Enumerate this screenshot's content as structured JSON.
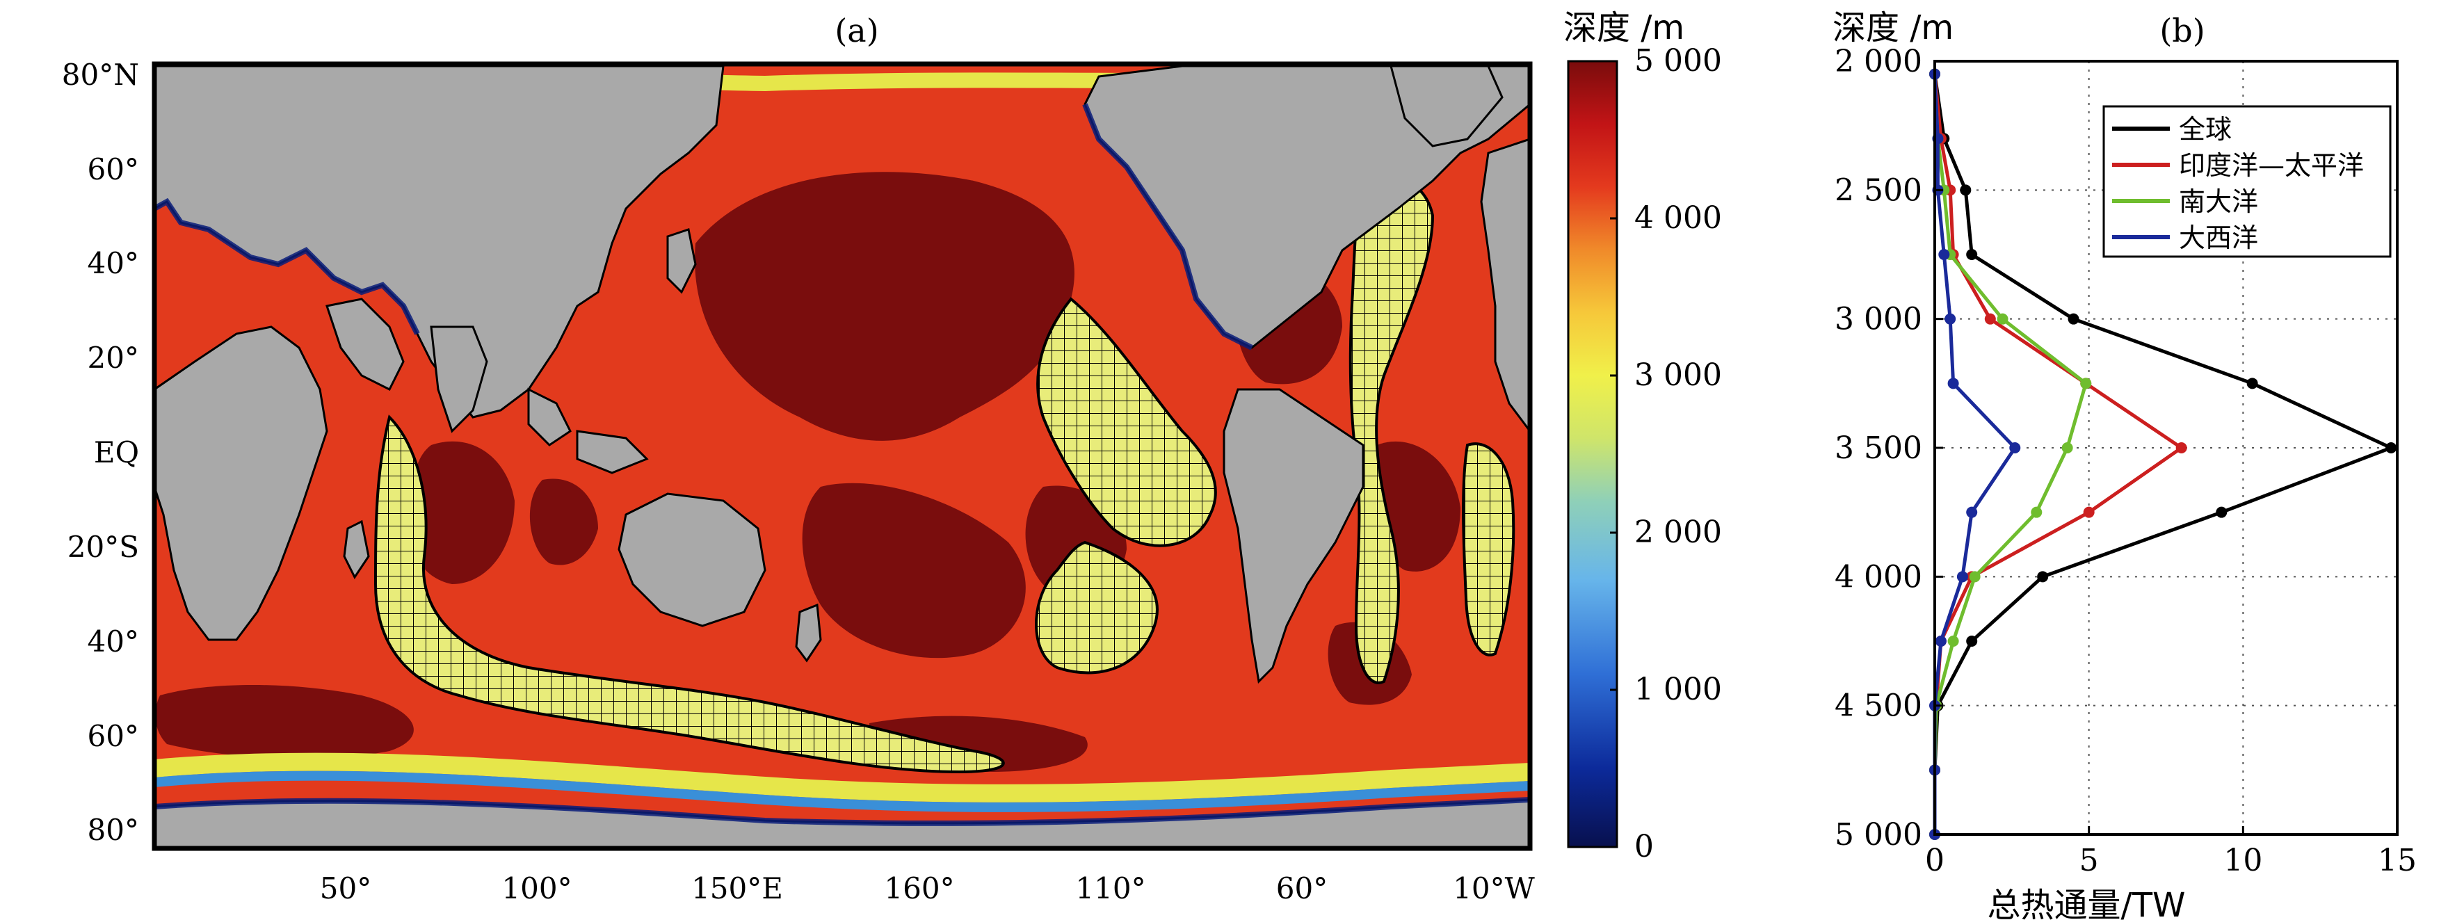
{
  "chart_data": [
    {
      "type": "heatmap",
      "panel_label": "(a)",
      "colorbar_title": "深度 /m",
      "colorbar_range": [
        0,
        5000
      ],
      "colorbar_ticks": [
        "0",
        "1 000",
        "2 000",
        "3 000",
        "4 000",
        "5 000"
      ],
      "colorbar_tick_values": [
        0,
        1000,
        2000,
        3000,
        4000,
        5000
      ],
      "y_ticks": [
        "80°N",
        "60°",
        "40°",
        "20°",
        "EQ",
        "20°S",
        "40°",
        "60°",
        "80°"
      ],
      "y_tick_values": [
        80,
        60,
        40,
        20,
        0,
        -20,
        -40,
        -60,
        -80
      ],
      "x_ticks": [
        "50°",
        "100°",
        "150°E",
        "160°",
        "110°",
        "60°",
        "10°W"
      ],
      "x_tick_values": [
        50,
        100,
        150,
        200,
        250,
        300,
        350
      ],
      "ylim": [
        -85,
        85
      ],
      "xlim": [
        0,
        360
      ],
      "colors": {
        "land": "#a9a9a9",
        "shelf": "#0a1d7a",
        "slope": "#3a8fd8",
        "mid": "#e6e64a",
        "deep": "#e23a1d",
        "abyss": "#7a0d0d",
        "hatch_fill": "#e8ec7a"
      }
    },
    {
      "type": "line",
      "panel_label": "(b)",
      "ylabel": "深度 /m",
      "xlabel": "总热通量/TW",
      "xlim": [
        0,
        15
      ],
      "ylim": [
        2000,
        5000
      ],
      "x_ticks": [
        "0",
        "5",
        "10",
        "15"
      ],
      "x_tick_values": [
        0,
        5,
        10,
        15
      ],
      "y_ticks": [
        "2 000",
        "2 500",
        "3 000",
        "3 500",
        "4 000",
        "4 500",
        "5 000"
      ],
      "y_tick_values": [
        2000,
        2500,
        3000,
        3500,
        4000,
        4500,
        5000
      ],
      "grid": true,
      "legend_position": "top-right",
      "series": [
        {
          "name": "全球",
          "color": "#000000",
          "points": [
            [
              0,
              2050
            ],
            [
              0.3,
              2300
            ],
            [
              1.0,
              2500
            ],
            [
              1.2,
              2750
            ],
            [
              4.5,
              3000
            ],
            [
              10.3,
              3250
            ],
            [
              14.8,
              3500
            ],
            [
              9.3,
              3750
            ],
            [
              3.5,
              4000
            ],
            [
              1.2,
              4250
            ],
            [
              0.1,
              4500
            ],
            [
              0,
              4750
            ],
            [
              0,
              5000
            ]
          ]
        },
        {
          "name": "印度洋—太平洋",
          "color": "#cc1f1f",
          "points": [
            [
              0,
              2050
            ],
            [
              0.2,
              2300
            ],
            [
              0.5,
              2500
            ],
            [
              0.6,
              2750
            ],
            [
              1.8,
              3000
            ],
            [
              4.9,
              3250
            ],
            [
              8.0,
              3500
            ],
            [
              5.0,
              3750
            ],
            [
              1.2,
              4000
            ],
            [
              0.2,
              4250
            ],
            [
              0.05,
              4500
            ],
            [
              0,
              4750
            ],
            [
              0,
              5000
            ]
          ]
        },
        {
          "name": "南大洋",
          "color": "#6fbd2e",
          "points": [
            [
              0,
              2050
            ],
            [
              0.1,
              2300
            ],
            [
              0.3,
              2500
            ],
            [
              0.5,
              2750
            ],
            [
              2.2,
              3000
            ],
            [
              4.9,
              3250
            ],
            [
              4.3,
              3500
            ],
            [
              3.3,
              3750
            ],
            [
              1.3,
              4000
            ],
            [
              0.6,
              4250
            ],
            [
              0.05,
              4500
            ],
            [
              0,
              4750
            ],
            [
              0,
              5000
            ]
          ]
        },
        {
          "name": "大西洋",
          "color": "#1a2a9a",
          "points": [
            [
              0,
              2050
            ],
            [
              0.1,
              2300
            ],
            [
              0.1,
              2500
            ],
            [
              0.3,
              2750
            ],
            [
              0.5,
              3000
            ],
            [
              0.6,
              3250
            ],
            [
              2.6,
              3500
            ],
            [
              1.2,
              3750
            ],
            [
              0.9,
              4000
            ],
            [
              0.2,
              4250
            ],
            [
              0.0,
              4500
            ],
            [
              0,
              4750
            ],
            [
              0,
              5000
            ]
          ]
        }
      ]
    }
  ]
}
